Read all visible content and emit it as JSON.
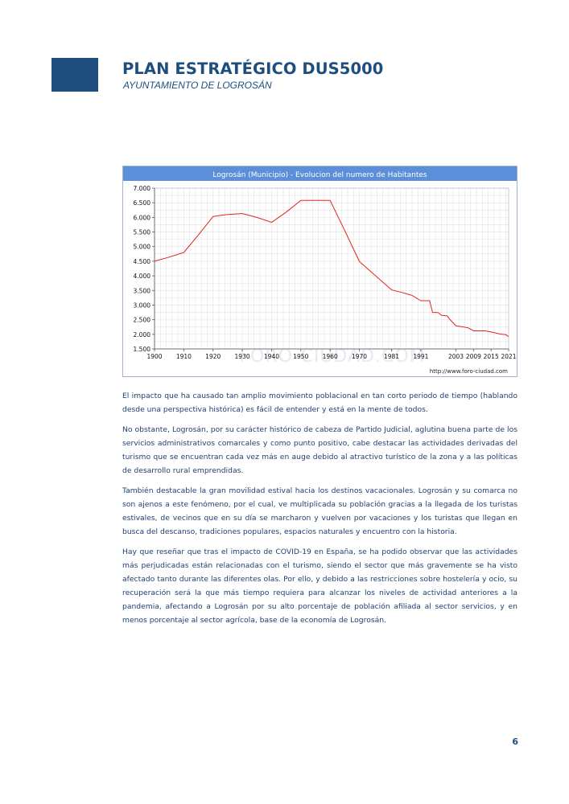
{
  "header": {
    "title": "PLAN ESTRATÉGICO DUS5000",
    "subtitle": "AYUNTAMIENTO DE LOGROSÁN",
    "logo_color": "#1d4e7e"
  },
  "chart_data": {
    "type": "line",
    "title": "Logrosán (Municipio) - Evolucion del numero de Habitantes",
    "xlabel": "",
    "ylabel": "",
    "xlim": [
      1900,
      2021
    ],
    "ylim": [
      1500,
      7000
    ],
    "grid": true,
    "x_ticks": [
      1900,
      1910,
      1920,
      1930,
      1940,
      1950,
      1960,
      1970,
      1981,
      1991,
      2003,
      2009,
      2015,
      2021
    ],
    "y_ticks": [
      1500,
      2000,
      2500,
      3000,
      3500,
      4000,
      4500,
      5000,
      5500,
      6000,
      6500,
      7000
    ],
    "y_tick_labels": [
      "1.500",
      "2.000",
      "2.500",
      "3.000",
      "3.500",
      "4.000",
      "4.500",
      "5.000",
      "5.500",
      "6.000",
      "6.500",
      "7.000"
    ],
    "watermark": "FORO-CIUDAD.COM",
    "source": "http://www.foro-ciudad.com",
    "line_color": "#e3231e",
    "title_bar_color": "#5b8fd9",
    "series": [
      {
        "name": "",
        "x": [
          1900,
          1905,
          1910,
          1915,
          1920,
          1925,
          1930,
          1935,
          1940,
          1945,
          1950,
          1955,
          1960,
          1965,
          1970,
          1975,
          1981,
          1985,
          1987,
          1988,
          1991,
          1994,
          1995,
          1997,
          1998,
          2000,
          2001,
          2003,
          2005,
          2007,
          2009,
          2011,
          2013,
          2015,
          2016,
          2018,
          2020,
          2021
        ],
        "values": [
          4500,
          4640,
          4800,
          5400,
          6030,
          6100,
          6130,
          6000,
          5830,
          6180,
          6580,
          6580,
          6580,
          5550,
          4490,
          4050,
          3520,
          3420,
          3360,
          3330,
          3150,
          3150,
          2750,
          2740,
          2650,
          2630,
          2500,
          2290,
          2260,
          2230,
          2120,
          2120,
          2120,
          2080,
          2060,
          2010,
          1990,
          1920
        ]
      }
    ]
  },
  "body": {
    "paragraphs": [
      "El impacto que ha causado tan amplio movimiento poblacional en tan corto periodo de tiempo (hablando desde una perspectiva histórica) es fácil de entender y está en la mente de todos.",
      "No obstante, Logrosán, por su carácter histórico de cabeza de Partido Judicial, aglutina buena parte de los servicios administrativos comarcales y como punto positivo, cabe destacar las actividades derivadas del turismo que se encuentran cada vez más en auge debido al atractivo turístico de la zona y a las políticas de desarrollo rural emprendidas.",
      "También destacable la gran movilidad estival hacia los destinos vacacionales. Logrosán y su comarca no son ajenos a este fenómeno, por el cual, ve multiplicada su población gracias a la llegada de los turistas estivales, de vecinos que en su día se marcharon y vuelven por vacaciones y los turistas que llegan en busca del descanso, tradiciones populares, espacios naturales y encuentro con la historia.",
      "Hay que reseñar que tras el impacto de COVID-19 en España, se ha podido observar que las actividades más perjudicadas están relacionadas con el turismo, siendo el sector que más gravemente se ha visto afectado tanto durante las diferentes olas. Por ello, y debido a las restricciones sobre hostelería y ocio, su recuperación será la que más tiempo requiera para alcanzar los niveles de actividad anteriores a la pandemia, afectando a Logrosán por su alto porcentaje de población afiliada al sector servicios, y en menos porcentaje al sector agrícola, base de la economía de Logrosán."
    ]
  },
  "footer": {
    "page_number": "6"
  }
}
